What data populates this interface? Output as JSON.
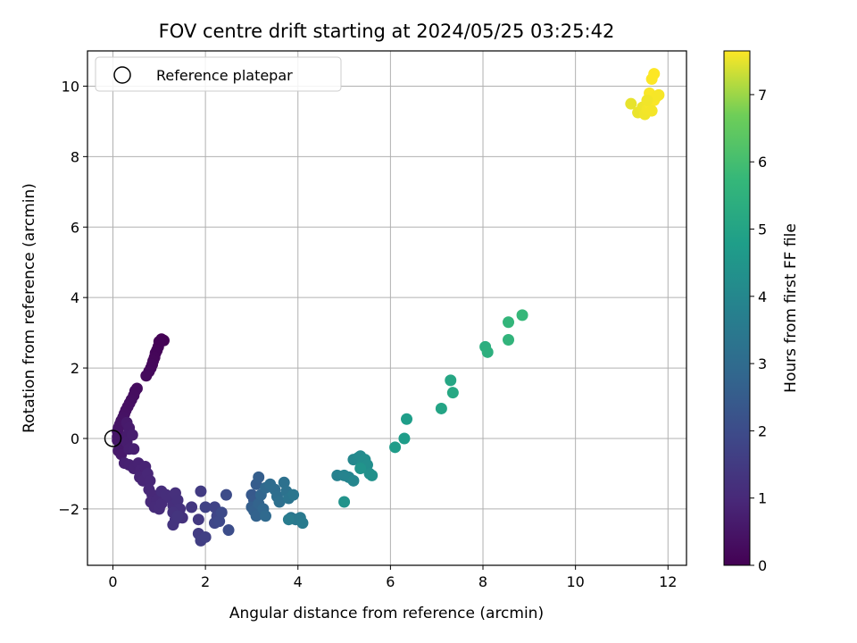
{
  "chart_data": {
    "type": "scatter",
    "title": "FOV centre drift starting at 2024/05/25 03:25:42",
    "xlabel": "Angular distance from reference (arcmin)",
    "ylabel": "Rotation from reference (arcmin)",
    "xlim": [
      -0.55,
      12.4
    ],
    "ylim": [
      -3.6,
      11.0
    ],
    "xticks": [
      0,
      2,
      4,
      6,
      8,
      10,
      12
    ],
    "yticks": [
      -2,
      0,
      2,
      4,
      6,
      8,
      10
    ],
    "grid": true,
    "legend": {
      "placement": "top-left",
      "entries": [
        "Reference platepar"
      ]
    },
    "reference_point": {
      "name": "Reference platepar",
      "x": 0,
      "y": 0
    },
    "colorbar": {
      "label": "Hours from first FF file",
      "colormap": "viridis",
      "range": [
        0,
        7.65
      ],
      "ticks": [
        0,
        1,
        2,
        3,
        4,
        5,
        6,
        7
      ]
    },
    "points": [
      [
        1.1,
        2.78,
        0.0
      ],
      [
        1.05,
        2.82,
        0.02
      ],
      [
        1.0,
        2.75,
        0.04
      ],
      [
        0.98,
        2.6,
        0.06
      ],
      [
        0.95,
        2.5,
        0.08
      ],
      [
        0.92,
        2.42,
        0.1
      ],
      [
        0.9,
        2.3,
        0.12
      ],
      [
        0.87,
        2.2,
        0.14
      ],
      [
        0.85,
        2.1,
        0.16
      ],
      [
        0.82,
        2.0,
        0.18
      ],
      [
        0.78,
        1.9,
        0.2
      ],
      [
        0.72,
        1.78,
        0.22
      ],
      [
        0.52,
        1.42,
        0.26
      ],
      [
        0.48,
        1.35,
        0.28
      ],
      [
        0.45,
        1.22,
        0.3
      ],
      [
        0.4,
        1.1,
        0.32
      ],
      [
        0.36,
        1.0,
        0.34
      ],
      [
        0.32,
        0.9,
        0.36
      ],
      [
        0.28,
        0.8,
        0.38
      ],
      [
        0.25,
        0.7,
        0.4
      ],
      [
        0.22,
        0.6,
        0.42
      ],
      [
        0.18,
        0.5,
        0.44
      ],
      [
        0.15,
        0.4,
        0.46
      ],
      [
        0.12,
        0.3,
        0.48
      ],
      [
        0.1,
        0.2,
        0.5
      ],
      [
        0.1,
        0.05,
        0.52
      ],
      [
        0.1,
        -0.05,
        0.54
      ],
      [
        0.15,
        -0.2,
        0.56
      ],
      [
        0.12,
        -0.35,
        0.58
      ],
      [
        0.18,
        -0.45,
        0.6
      ],
      [
        0.3,
        0.45,
        0.62
      ],
      [
        0.35,
        0.3,
        0.64
      ],
      [
        0.32,
        0.1,
        0.66
      ],
      [
        0.3,
        -0.1,
        0.68
      ],
      [
        0.42,
        0.1,
        0.7
      ],
      [
        0.35,
        -0.3,
        0.72
      ],
      [
        0.45,
        -0.3,
        0.74
      ],
      [
        0.25,
        -0.7,
        0.76
      ],
      [
        0.35,
        -0.75,
        0.78
      ],
      [
        0.45,
        -0.85,
        0.8
      ],
      [
        0.55,
        -0.7,
        0.82
      ],
      [
        0.6,
        -0.9,
        0.84
      ],
      [
        0.7,
        -0.8,
        0.86
      ],
      [
        0.58,
        -1.1,
        0.88
      ],
      [
        0.65,
        -1.2,
        0.9
      ],
      [
        0.75,
        -1.0,
        0.92
      ],
      [
        0.8,
        -1.2,
        0.94
      ],
      [
        0.78,
        -1.45,
        0.96
      ],
      [
        0.85,
        -1.6,
        0.98
      ],
      [
        0.82,
        -1.8,
        1.0
      ],
      [
        0.95,
        -1.75,
        1.02
      ],
      [
        0.9,
        -1.95,
        1.04
      ],
      [
        1.0,
        -2.0,
        1.06
      ],
      [
        1.05,
        -1.85,
        1.08
      ],
      [
        1.05,
        -1.5,
        1.1
      ],
      [
        1.15,
        -1.6,
        1.12
      ],
      [
        1.25,
        -1.7,
        1.14
      ],
      [
        1.3,
        -1.9,
        1.16
      ],
      [
        1.35,
        -1.55,
        1.18
      ],
      [
        1.4,
        -1.75,
        1.2
      ],
      [
        1.45,
        -2.0,
        1.22
      ],
      [
        1.3,
        -2.1,
        1.24
      ],
      [
        1.5,
        -2.25,
        1.26
      ],
      [
        1.35,
        -2.3,
        1.28
      ],
      [
        1.3,
        -2.45,
        1.3
      ],
      [
        1.4,
        -2.2,
        1.32
      ],
      [
        1.7,
        -1.95,
        1.4
      ],
      [
        1.85,
        -2.3,
        1.45
      ],
      [
        1.9,
        -1.5,
        1.5
      ],
      [
        1.85,
        -2.7,
        1.55
      ],
      [
        1.9,
        -2.9,
        1.6
      ],
      [
        2.0,
        -2.8,
        1.65
      ],
      [
        2.0,
        -1.95,
        1.7
      ],
      [
        2.2,
        -1.95,
        1.75
      ],
      [
        2.25,
        -2.2,
        1.8
      ],
      [
        2.2,
        -2.4,
        1.85
      ],
      [
        2.3,
        -2.35,
        1.9
      ],
      [
        2.35,
        -2.1,
        1.95
      ],
      [
        2.45,
        -1.6,
        2.0
      ],
      [
        2.5,
        -2.6,
        2.05
      ],
      [
        3.0,
        -1.6,
        2.4
      ],
      [
        3.05,
        -1.75,
        2.45
      ],
      [
        3.1,
        -1.3,
        2.5
      ],
      [
        3.15,
        -1.1,
        2.55
      ],
      [
        3.0,
        -1.95,
        2.6
      ],
      [
        3.05,
        -2.05,
        2.65
      ],
      [
        3.1,
        -2.2,
        2.7
      ],
      [
        3.15,
        -1.85,
        2.75
      ],
      [
        3.2,
        -1.6,
        2.8
      ],
      [
        3.25,
        -2.0,
        2.85
      ],
      [
        3.3,
        -1.4,
        2.9
      ],
      [
        3.3,
        -2.2,
        2.95
      ],
      [
        3.4,
        -1.3,
        3.0
      ],
      [
        3.5,
        -1.45,
        3.05
      ],
      [
        3.55,
        -1.65,
        3.1
      ],
      [
        3.6,
        -1.8,
        3.15
      ],
      [
        3.7,
        -1.25,
        3.2
      ],
      [
        3.75,
        -1.5,
        3.25
      ],
      [
        3.8,
        -1.7,
        3.3
      ],
      [
        3.85,
        -2.25,
        3.35
      ],
      [
        3.9,
        -1.6,
        3.4
      ],
      [
        3.95,
        -2.3,
        3.45
      ],
      [
        4.05,
        -2.25,
        3.5
      ],
      [
        4.1,
        -2.4,
        3.55
      ],
      [
        3.8,
        -2.3,
        3.6
      ],
      [
        4.85,
        -1.05,
        3.8
      ],
      [
        5.0,
        -1.05,
        3.85
      ],
      [
        5.1,
        -1.1,
        3.9
      ],
      [
        5.2,
        -1.2,
        3.95
      ],
      [
        5.2,
        -0.6,
        4.0
      ],
      [
        5.3,
        -0.55,
        4.05
      ],
      [
        5.35,
        -0.5,
        4.1
      ],
      [
        5.4,
        -0.7,
        4.15
      ],
      [
        5.45,
        -0.6,
        4.2
      ],
      [
        5.5,
        -0.75,
        4.25
      ],
      [
        5.55,
        -1.0,
        4.3
      ],
      [
        5.6,
        -1.05,
        4.35
      ],
      [
        5.0,
        -1.8,
        4.4
      ],
      [
        5.35,
        -0.85,
        4.45
      ],
      [
        6.1,
        -0.25,
        4.7
      ],
      [
        6.3,
        0.0,
        4.75
      ],
      [
        6.35,
        0.55,
        4.8
      ],
      [
        7.1,
        0.85,
        5.0
      ],
      [
        7.3,
        1.65,
        5.1
      ],
      [
        7.35,
        1.3,
        5.15
      ],
      [
        8.05,
        2.6,
        5.4
      ],
      [
        8.1,
        2.45,
        5.45
      ],
      [
        8.55,
        2.8,
        5.6
      ],
      [
        8.55,
        3.3,
        5.65
      ],
      [
        8.85,
        3.5,
        5.75
      ],
      [
        11.2,
        9.5,
        7.5
      ],
      [
        11.35,
        9.25,
        7.52
      ],
      [
        11.45,
        9.4,
        7.54
      ],
      [
        11.5,
        9.2,
        7.56
      ],
      [
        11.55,
        9.35,
        7.58
      ],
      [
        11.6,
        9.5,
        7.6
      ],
      [
        11.6,
        9.8,
        7.62
      ],
      [
        11.65,
        10.2,
        7.64
      ],
      [
        11.7,
        10.35,
        7.65
      ],
      [
        11.7,
        9.6,
        7.63
      ],
      [
        11.75,
        9.7,
        7.61
      ],
      [
        11.8,
        9.75,
        7.6
      ],
      [
        11.65,
        9.3,
        7.59
      ],
      [
        11.55,
        9.6,
        7.57
      ]
    ]
  }
}
